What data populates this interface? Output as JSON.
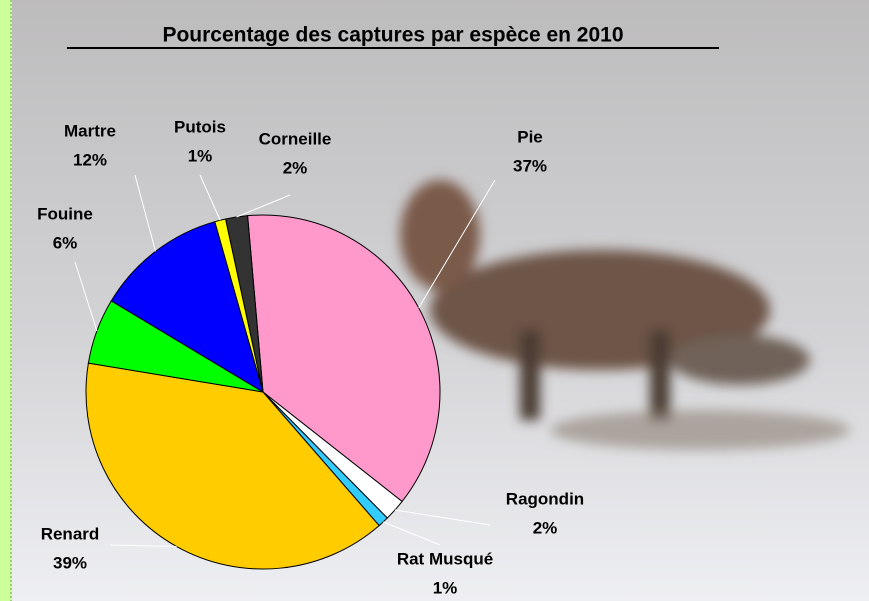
{
  "chart_data": {
    "type": "pie",
    "title": "Pourcentage des captures par espèce en 2010",
    "categories": [
      "Pie",
      "Ragondin",
      "Rat Musqué",
      "Renard",
      "Fouine",
      "Martre",
      "Putois",
      "Corneille"
    ],
    "values": [
      37,
      2,
      1,
      39,
      6,
      12,
      1,
      2
    ],
    "value_labels": [
      "37%",
      "2%",
      "1%",
      "39%",
      "6%",
      "12%",
      "1%",
      "2%"
    ],
    "colors": [
      "#ff99cc",
      "#ffffff",
      "#33ccff",
      "#ffcc00",
      "#00ff00",
      "#0000ff",
      "#ffff00",
      "#333333"
    ]
  }
}
